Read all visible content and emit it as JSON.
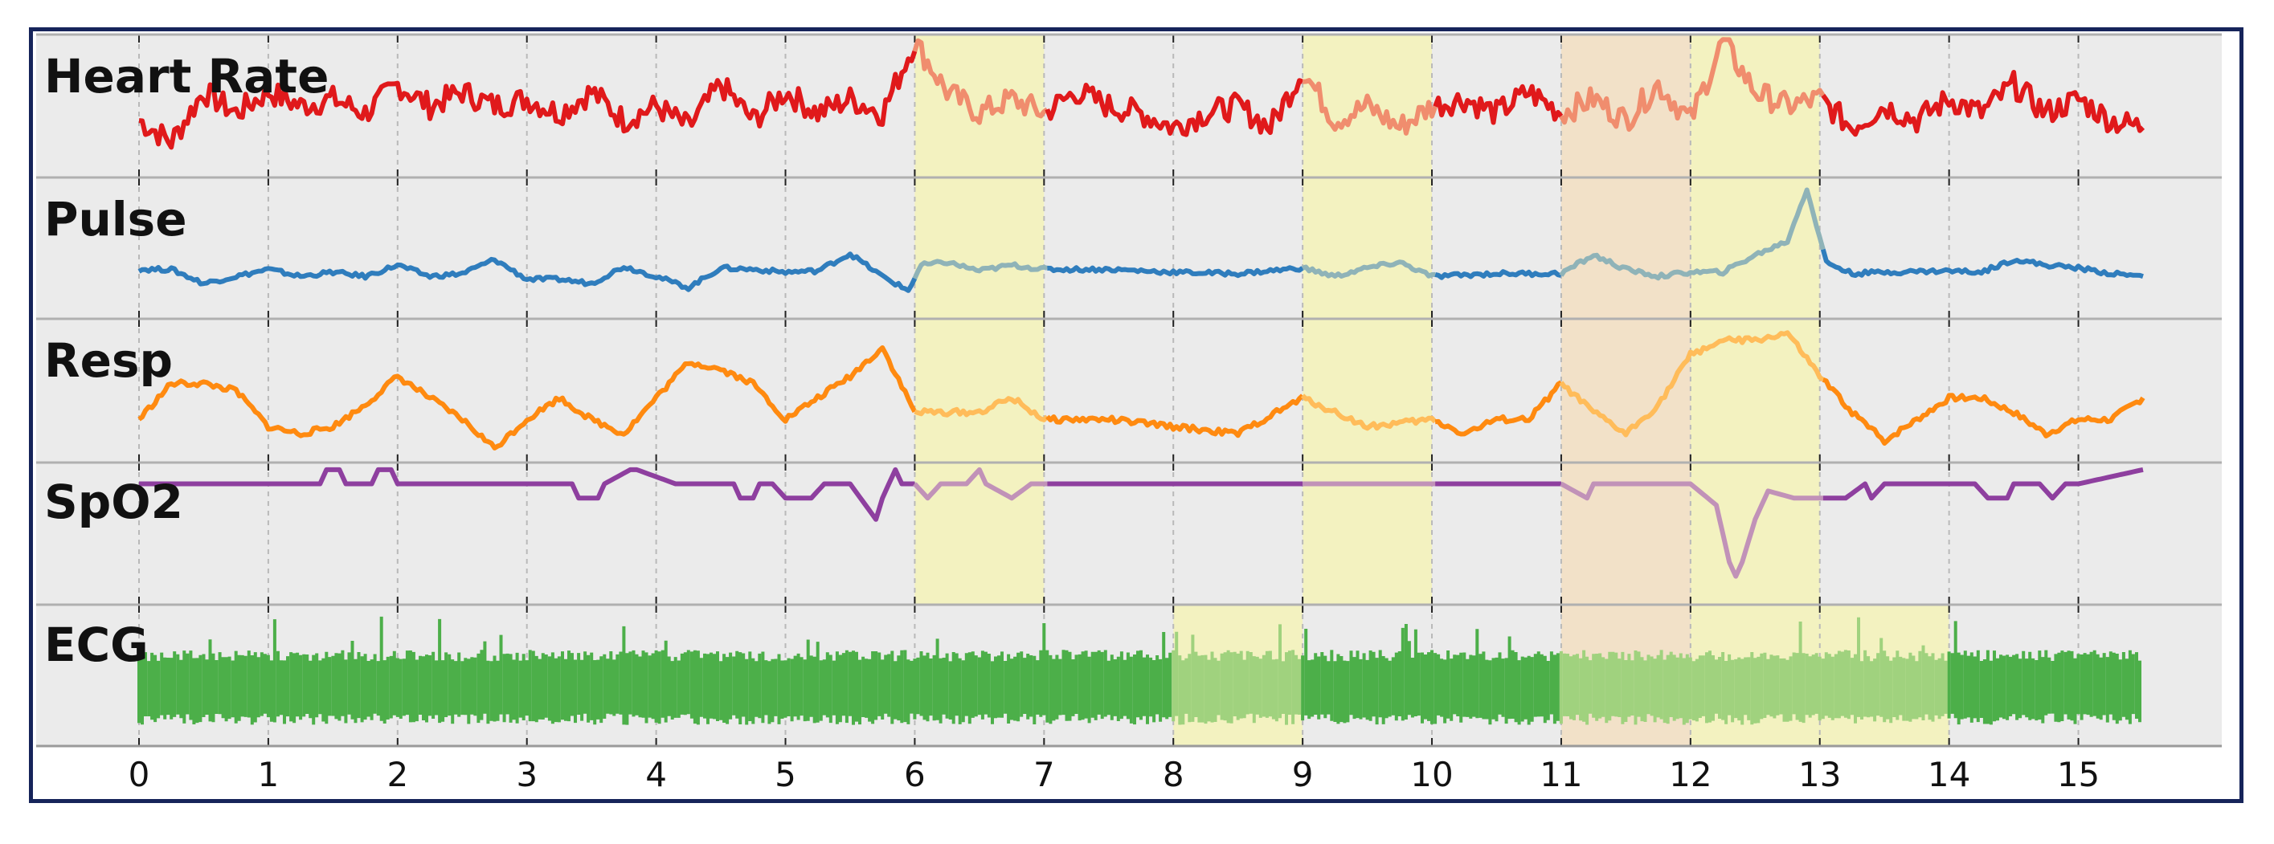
{
  "chart_data": {
    "type": "line",
    "x_ticks": [
      "0",
      "1",
      "2",
      "3",
      "4",
      "5",
      "6",
      "7",
      "8",
      "9",
      "10",
      "11",
      "12",
      "13",
      "14",
      "15"
    ],
    "xlim": [
      0,
      15.5
    ],
    "grid": true,
    "panels": [
      {
        "name": "Heart Rate",
        "color": "#e0191b",
        "highlight_color": "#f08d6e",
        "x": [
          0,
          0.25,
          0.5,
          0.75,
          1,
          1.25,
          1.5,
          1.75,
          2,
          2.25,
          2.5,
          2.75,
          3,
          3.25,
          3.5,
          3.75,
          4,
          4.25,
          4.5,
          4.75,
          5,
          5.25,
          5.5,
          5.75,
          6,
          6.25,
          6.5,
          6.75,
          7,
          7.25,
          7.5,
          7.75,
          8,
          8.25,
          8.5,
          8.75,
          9,
          9.25,
          9.5,
          9.75,
          10,
          10.25,
          10.5,
          10.75,
          11,
          11.25,
          11.5,
          11.75,
          12,
          12.25,
          12.5,
          12.75,
          13,
          13.25,
          13.5,
          13.75,
          14,
          14.25,
          14.5,
          14.75,
          15,
          15.25,
          15.5
        ],
        "y": [
          0.4,
          0.25,
          0.6,
          0.45,
          0.6,
          0.5,
          0.55,
          0.45,
          0.65,
          0.5,
          0.6,
          0.5,
          0.55,
          0.45,
          0.6,
          0.4,
          0.5,
          0.35,
          0.65,
          0.4,
          0.6,
          0.45,
          0.55,
          0.45,
          0.95,
          0.6,
          0.45,
          0.55,
          0.45,
          0.6,
          0.5,
          0.45,
          0.35,
          0.45,
          0.5,
          0.35,
          0.75,
          0.4,
          0.5,
          0.35,
          0.5,
          0.55,
          0.45,
          0.6,
          0.45,
          0.55,
          0.4,
          0.65,
          0.4,
          0.95,
          0.6,
          0.5,
          0.55,
          0.35,
          0.5,
          0.4,
          0.55,
          0.45,
          0.65,
          0.45,
          0.55,
          0.4,
          0.35
        ]
      },
      {
        "name": "Pulse",
        "color": "#2f7dbd",
        "highlight_color": "#8fb3b8",
        "x": [
          0,
          0.25,
          0.5,
          0.75,
          1,
          1.25,
          1.5,
          1.75,
          2,
          2.25,
          2.5,
          2.75,
          3,
          3.25,
          3.5,
          3.75,
          4,
          4.25,
          4.5,
          4.75,
          5,
          5.25,
          5.5,
          5.75,
          5.95,
          6.05,
          6.25,
          6.5,
          6.75,
          7,
          7.5,
          8,
          8.5,
          9,
          9.25,
          9.5,
          9.75,
          10,
          10.5,
          11,
          11.25,
          11.5,
          11.75,
          12,
          12.25,
          12.5,
          12.75,
          12.9,
          13.05,
          13.25,
          13.5,
          14,
          14.25,
          14.5,
          14.75,
          15,
          15.25,
          15.5
        ],
        "y": [
          0.35,
          0.35,
          0.25,
          0.3,
          0.35,
          0.3,
          0.33,
          0.3,
          0.38,
          0.3,
          0.32,
          0.42,
          0.28,
          0.28,
          0.25,
          0.37,
          0.3,
          0.22,
          0.36,
          0.35,
          0.33,
          0.34,
          0.46,
          0.3,
          0.2,
          0.38,
          0.4,
          0.34,
          0.38,
          0.35,
          0.35,
          0.33,
          0.32,
          0.36,
          0.3,
          0.36,
          0.4,
          0.3,
          0.32,
          0.32,
          0.45,
          0.35,
          0.3,
          0.33,
          0.33,
          0.45,
          0.55,
          0.92,
          0.4,
          0.32,
          0.33,
          0.34,
          0.33,
          0.42,
          0.38,
          0.36,
          0.32,
          0.3
        ]
      },
      {
        "name": "Resp",
        "color": "#ff8a10",
        "highlight_color": "#ffbc5a",
        "x": [
          0,
          0.25,
          0.5,
          0.75,
          1,
          1.25,
          1.5,
          1.75,
          2,
          2.25,
          2.5,
          2.75,
          3,
          3.25,
          3.5,
          3.75,
          4,
          4.25,
          4.5,
          4.75,
          5,
          5.25,
          5.5,
          5.75,
          6,
          6.25,
          6.5,
          6.75,
          7,
          7.5,
          8,
          8.5,
          9,
          9.5,
          10,
          10.25,
          10.5,
          10.75,
          11,
          11.25,
          11.5,
          11.75,
          12,
          12.25,
          12.5,
          12.75,
          13,
          13.25,
          13.5,
          13.75,
          14,
          14.25,
          14.5,
          14.75,
          15,
          15.25,
          15.5
        ],
        "y": [
          0.3,
          0.55,
          0.55,
          0.5,
          0.25,
          0.2,
          0.25,
          0.4,
          0.6,
          0.45,
          0.3,
          0.1,
          0.3,
          0.45,
          0.3,
          0.2,
          0.45,
          0.7,
          0.65,
          0.55,
          0.3,
          0.45,
          0.6,
          0.8,
          0.35,
          0.35,
          0.35,
          0.45,
          0.3,
          0.3,
          0.25,
          0.2,
          0.45,
          0.25,
          0.3,
          0.2,
          0.3,
          0.3,
          0.55,
          0.35,
          0.2,
          0.4,
          0.75,
          0.85,
          0.85,
          0.9,
          0.6,
          0.35,
          0.15,
          0.3,
          0.45,
          0.45,
          0.35,
          0.2,
          0.3,
          0.3,
          0.45
        ]
      },
      {
        "name": "SpO2",
        "color": "#8e3f9f",
        "highlight_color": "#c192b8",
        "x": [
          0,
          0.5,
          1,
          1.4,
          1.45,
          1.55,
          1.6,
          1.8,
          1.85,
          1.95,
          2,
          2.5,
          3,
          3.35,
          3.4,
          3.55,
          3.6,
          3.8,
          3.85,
          4.15,
          4.2,
          4.5,
          4.6,
          4.65,
          4.75,
          4.8,
          4.9,
          5,
          5.2,
          5.3,
          5.5,
          5.7,
          5.75,
          5.85,
          5.9,
          6,
          6.1,
          6.2,
          6.4,
          6.5,
          6.55,
          6.75,
          6.9,
          7,
          8,
          9,
          10,
          11,
          11.2,
          11.25,
          11.3,
          12,
          12.2,
          12.3,
          12.35,
          12.4,
          12.5,
          12.6,
          12.8,
          12.9,
          13,
          13.1,
          13.2,
          13.35,
          13.4,
          13.5,
          14,
          14.2,
          14.3,
          14.45,
          14.5,
          14.7,
          14.8,
          14.9,
          15,
          15.5
        ],
        "y": [
          0.85,
          0.85,
          0.85,
          0.85,
          0.95,
          0.95,
          0.85,
          0.85,
          0.95,
          0.95,
          0.85,
          0.85,
          0.85,
          0.85,
          0.75,
          0.75,
          0.85,
          0.95,
          0.95,
          0.85,
          0.85,
          0.85,
          0.85,
          0.75,
          0.75,
          0.85,
          0.85,
          0.75,
          0.75,
          0.85,
          0.85,
          0.6,
          0.75,
          0.95,
          0.85,
          0.85,
          0.75,
          0.85,
          0.85,
          0.95,
          0.85,
          0.75,
          0.85,
          0.85,
          0.85,
          0.85,
          0.85,
          0.85,
          0.75,
          0.85,
          0.85,
          0.85,
          0.7,
          0.3,
          0.2,
          0.3,
          0.6,
          0.8,
          0.75,
          0.75,
          0.75,
          0.75,
          0.75,
          0.85,
          0.75,
          0.85,
          0.85,
          0.85,
          0.75,
          0.75,
          0.85,
          0.85,
          0.75,
          0.85,
          0.85,
          0.95
        ]
      },
      {
        "name": "ECG",
        "color": "#4caf49",
        "highlight_color": "#a0d27e",
        "band": [
          0.15,
          0.68
        ],
        "spike_max": 0.92
      }
    ],
    "highlights": [
      {
        "panels": [
          0,
          1,
          2,
          3
        ],
        "x0": 6,
        "x1": 7,
        "color": "#f5f3b8"
      },
      {
        "panels": [
          0,
          1,
          2,
          3
        ],
        "x0": 9,
        "x1": 10,
        "color": "#f5f3b8"
      },
      {
        "panels": [
          0,
          1,
          2,
          3,
          4
        ],
        "x0": 11,
        "x1": 12,
        "color": "#f3dfc2"
      },
      {
        "panels": [
          0,
          1,
          2,
          3,
          4
        ],
        "x0": 12,
        "x1": 13,
        "color": "#f5f3b8"
      },
      {
        "panels": [
          4
        ],
        "x0": 8,
        "x1": 9,
        "color": "#f5f3b8"
      },
      {
        "panels": [
          4
        ],
        "x0": 13,
        "x1": 14,
        "color": "#f5f3b8"
      }
    ]
  }
}
